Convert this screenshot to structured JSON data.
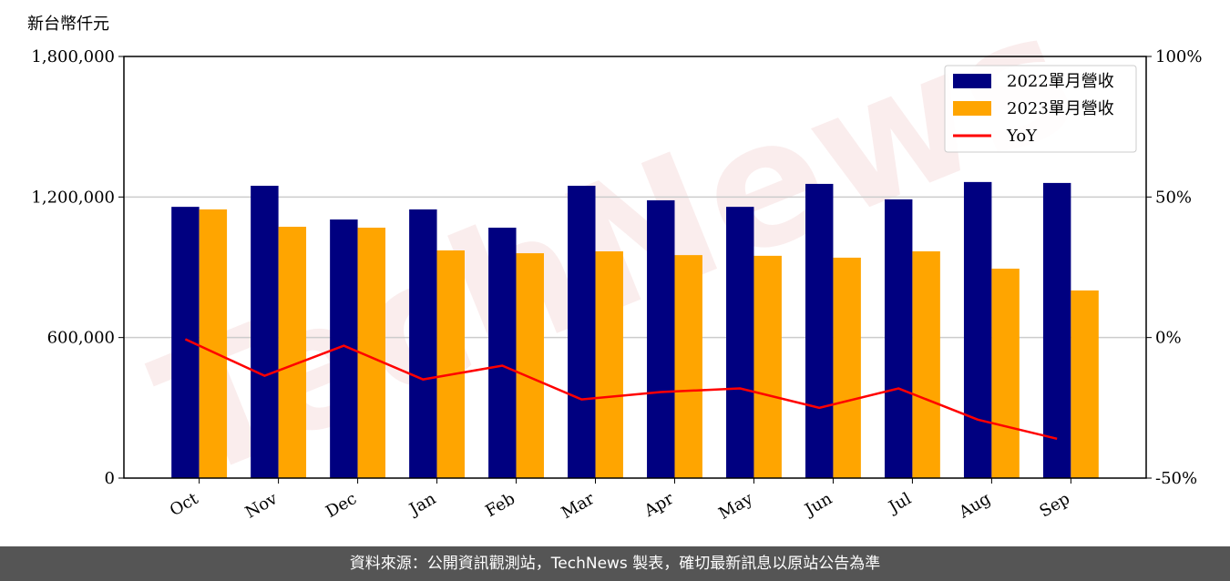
{
  "chart_data": {
    "type": "bar_line",
    "y_label": "新台幣仟元",
    "watermark": "TechNews",
    "categories": [
      "Oct",
      "Nov",
      "Dec",
      "Jan",
      "Feb",
      "Mar",
      "Apr",
      "May",
      "Jun",
      "Jul",
      "Aug",
      "Sep"
    ],
    "series": [
      {
        "name": "2022單月營收",
        "color": "#000080",
        "type": "bar",
        "values": [
          1158000,
          1248000,
          1104000,
          1147000,
          1069000,
          1248000,
          1186000,
          1158000,
          1256000,
          1190000,
          1264000,
          1260000
        ]
      },
      {
        "name": "2023單月營收",
        "color": "#ffa500",
        "type": "bar",
        "values": [
          1147000,
          1073000,
          1069000,
          972000,
          960000,
          968000,
          952000,
          949000,
          941000,
          968000,
          894000,
          801000
        ]
      },
      {
        "name": "YoY",
        "color": "#ff0000",
        "type": "line",
        "axis": "y2",
        "values": [
          -0.6,
          -13.6,
          -2.9,
          -14.9,
          -10,
          -22,
          -19.4,
          -18.1,
          -25,
          -18.1,
          -29.2,
          -36
        ]
      }
    ],
    "ylim": [
      0,
      1800000
    ],
    "yticks": [
      {
        "value": 0,
        "label": "0"
      },
      {
        "value": 600000,
        "label": "600,000"
      },
      {
        "value": 1200000,
        "label": "1,200,000"
      },
      {
        "value": 1800000,
        "label": "1,800,000"
      }
    ],
    "y2lim": [
      -50,
      100
    ],
    "y2ticks": [
      {
        "value": -50,
        "label": "-50%"
      },
      {
        "value": 0,
        "label": "0%"
      },
      {
        "value": 50,
        "label": "50%"
      },
      {
        "value": 100,
        "label": "100%"
      }
    ],
    "grid": true,
    "legend": "upper right"
  },
  "footer": "資料來源：公開資訊觀測站，TechNews 製表，確切最新訊息以原站公告為準"
}
